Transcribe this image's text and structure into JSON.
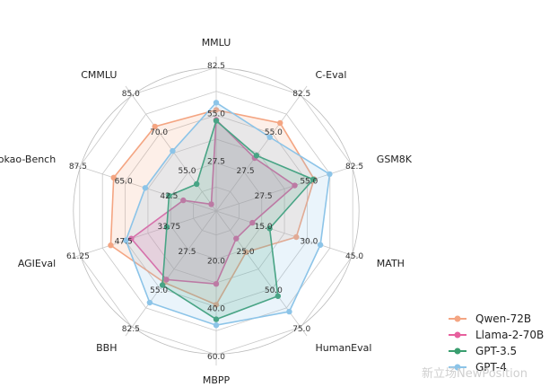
{
  "chart_data": {
    "type": "radar",
    "axes": [
      "MMLU",
      "C-Eval",
      "GSM8K",
      "MATH",
      "HumanEval",
      "MBPP",
      "BBH",
      "AGIEval",
      "Gaokao-Bench",
      "CMMLU"
    ],
    "tick_labels": [
      [
        "27.5",
        "55.0",
        "82.5"
      ],
      [
        "27.5",
        "55.0",
        "82.5"
      ],
      [
        "27.5",
        "55.0",
        "82.5"
      ],
      [
        "15.0",
        "30.0",
        "45.0"
      ],
      [
        "25.0",
        "50.0",
        "75.0"
      ],
      [
        "20.0",
        "40.0",
        "60.0"
      ],
      [
        "27.5",
        "55.0",
        "82.5"
      ],
      [
        "33.75",
        "47.5",
        "61.25"
      ],
      [
        "42.5",
        "65.0",
        "87.5"
      ],
      [
        "55.0",
        "70.0",
        "85.0"
      ]
    ],
    "ranges": [
      [
        0,
        110
      ],
      [
        0,
        110
      ],
      [
        0,
        110
      ],
      [
        0,
        60
      ],
      [
        0,
        100
      ],
      [
        0,
        80
      ],
      [
        0,
        110
      ],
      [
        20,
        75
      ],
      [
        20,
        110
      ],
      [
        40,
        100
      ]
    ],
    "series": [
      {
        "name": "Qwen-72B",
        "color": "#f4a582",
        "values": [
          77.4,
          83.3,
          78.9,
          35.2,
          35.4,
          52.2,
          67.7,
          62.5,
          87.6,
          83.6
        ]
      },
      {
        "name": "Llama-2-70B",
        "color": "#e7609e",
        "values": [
          69.8,
          50.1,
          63.3,
          15.9,
          23.7,
          40.6,
          64.9,
          54.2,
          41.7,
          43.5
        ]
      },
      {
        "name": "GPT-3.5",
        "color": "#3a9e6f",
        "values": [
          69.1,
          52.5,
          78.2,
          23.5,
          73.2,
          60.3,
          70.1,
          39.9,
          51.1,
          53.9
        ]
      },
      {
        "name": "GPT-4",
        "color": "#8cc4e8",
        "values": [
          83.0,
          69.9,
          91.4,
          45.8,
          86.6,
          63.6,
          86.7,
          56.4,
          66.8,
          71.0
        ]
      }
    ],
    "grid": true,
    "legend_position": "bottom-right"
  },
  "watermark": "新立场NewPosition"
}
